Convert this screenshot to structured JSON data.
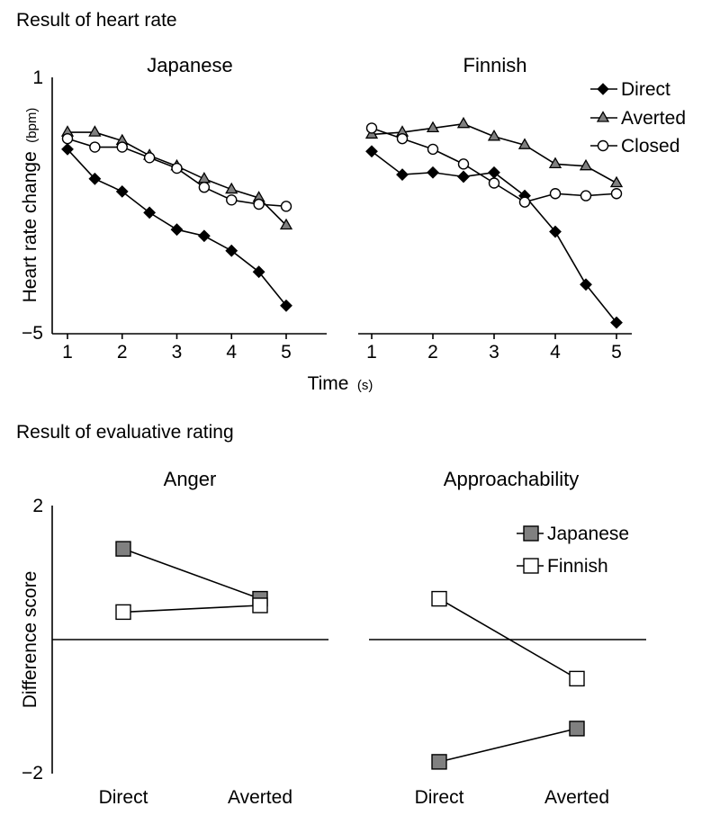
{
  "sections": {
    "heart": "Result of heart rate",
    "rating": "Result of evaluative rating"
  },
  "heart_axes": {
    "ylabel": "Heart rate change",
    "ylabel_unit": "(bpm)",
    "xlabel": "Time",
    "xlabel_unit": "(s)",
    "y_tick_top": "1",
    "y_tick_bottom": "−5",
    "x_ticks": [
      "1",
      "2",
      "3",
      "4",
      "5"
    ]
  },
  "rating_axes": {
    "ylabel": "Difference score",
    "y_tick_top": "2",
    "y_tick_bottom": "−2",
    "x_ticks": [
      "Direct",
      "Averted"
    ]
  },
  "heart_legend": [
    "Direct",
    "Averted",
    "Closed"
  ],
  "rating_legend": [
    "Japanese",
    "Finnish"
  ],
  "colors": {
    "line": "#000000",
    "gray_marker": "#808080",
    "white_marker": "#ffffff",
    "black_marker": "#000000"
  },
  "chart_data": [
    {
      "type": "line",
      "title": "Japanese",
      "xlabel": "Time (s)",
      "ylabel": "Heart rate change (bpm)",
      "xlim": [
        1,
        5
      ],
      "ylim": [
        -5,
        1
      ],
      "x": [
        1,
        1.5,
        2,
        2.5,
        3,
        3.5,
        4,
        4.5,
        5
      ],
      "series": [
        {
          "name": "Direct",
          "marker": "diamond",
          "values": [
            -0.7,
            -1.4,
            -1.7,
            -2.2,
            -2.6,
            -2.75,
            -3.1,
            -3.6,
            -4.4
          ]
        },
        {
          "name": "Averted",
          "marker": "triangle",
          "values": [
            -0.3,
            -0.3,
            -0.5,
            -0.85,
            -1.1,
            -1.4,
            -1.65,
            -1.85,
            -2.5
          ]
        },
        {
          "name": "Closed",
          "marker": "circle",
          "values": [
            -0.45,
            -0.65,
            -0.65,
            -0.9,
            -1.15,
            -1.6,
            -1.9,
            -2.0,
            -2.05
          ]
        }
      ]
    },
    {
      "type": "line",
      "title": "Finnish",
      "xlabel": "Time (s)",
      "ylabel": "Heart rate change (bpm)",
      "xlim": [
        1,
        5
      ],
      "ylim": [
        -5,
        1
      ],
      "x": [
        1,
        1.5,
        2,
        2.5,
        3,
        3.5,
        4,
        4.5,
        5
      ],
      "series": [
        {
          "name": "Direct",
          "marker": "diamond",
          "values": [
            -0.75,
            -1.3,
            -1.25,
            -1.35,
            -1.25,
            -1.8,
            -2.65,
            -3.9,
            -4.8
          ]
        },
        {
          "name": "Averted",
          "marker": "triangle",
          "values": [
            -0.35,
            -0.3,
            -0.2,
            -0.1,
            -0.4,
            -0.6,
            -1.05,
            -1.1,
            -1.5
          ]
        },
        {
          "name": "Closed",
          "marker": "circle",
          "values": [
            -0.2,
            -0.45,
            -0.7,
            -1.05,
            -1.5,
            -1.95,
            -1.75,
            -1.8,
            -1.75
          ]
        }
      ]
    },
    {
      "type": "line",
      "title": "Anger",
      "ylabel": "Difference score",
      "categories": [
        "Direct",
        "Averted"
      ],
      "ylim": [
        -2,
        2
      ],
      "series": [
        {
          "name": "Japanese",
          "marker": "square-gray",
          "values": [
            1.35,
            0.6
          ]
        },
        {
          "name": "Finnish",
          "marker": "square-white",
          "values": [
            0.4,
            0.5
          ]
        }
      ]
    },
    {
      "type": "line",
      "title": "Approachability",
      "ylabel": "Difference score",
      "categories": [
        "Direct",
        "Averted"
      ],
      "ylim": [
        -2,
        2
      ],
      "series": [
        {
          "name": "Japanese",
          "marker": "square-gray",
          "values": [
            -1.85,
            -1.35
          ]
        },
        {
          "name": "Finnish",
          "marker": "square-white",
          "values": [
            0.6,
            -0.6
          ]
        }
      ]
    }
  ]
}
